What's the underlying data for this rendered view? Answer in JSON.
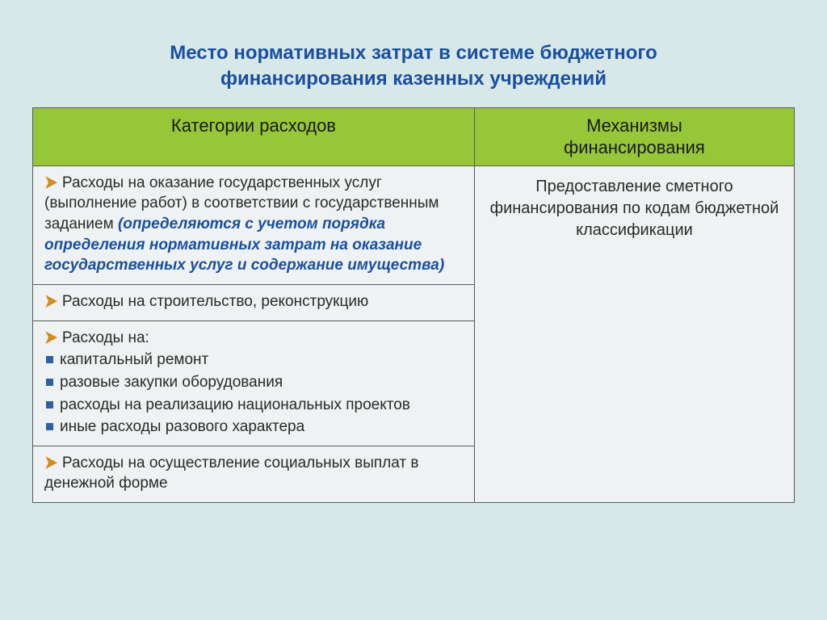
{
  "colors": {
    "background": "#d8e8e8",
    "title": "#1a4fa0",
    "header_bg": "#96c739",
    "cell_bg": "#eef2f2",
    "border": "#5a5a5a",
    "chevron": "#d58a1c",
    "square": "#2e5fa6",
    "text": "#2a2a2a",
    "emphasis": "#1a4fa0"
  },
  "title_line1": "Место нормативных затрат в системе бюджетного",
  "title_line2": "финансирования казенных учреждений",
  "headers": {
    "col0": "Категории расходов",
    "col1_line1": "Механизмы",
    "col1_line2": "финансирования"
  },
  "right_text": "Предоставление сметного финансирования по кодам бюджетной классификации",
  "row1": {
    "plain": "Расходы на оказание государственных услуг (выполнение работ) в соответствии с государственным заданием ",
    "emph": "(определяются с учетом порядка определения нормативных затрат на оказание государственных услуг и содержание имущества)"
  },
  "row2": "Расходы на строительство, реконструкцию",
  "row3": {
    "lead": "Расходы на:",
    "items": [
      "капитальный ремонт",
      "разовые закупки оборудования",
      "расходы на реализацию национальных проектов",
      "иные расходы разового характера"
    ]
  },
  "row4": "Расходы на осуществление социальных выплат в денежной форме"
}
